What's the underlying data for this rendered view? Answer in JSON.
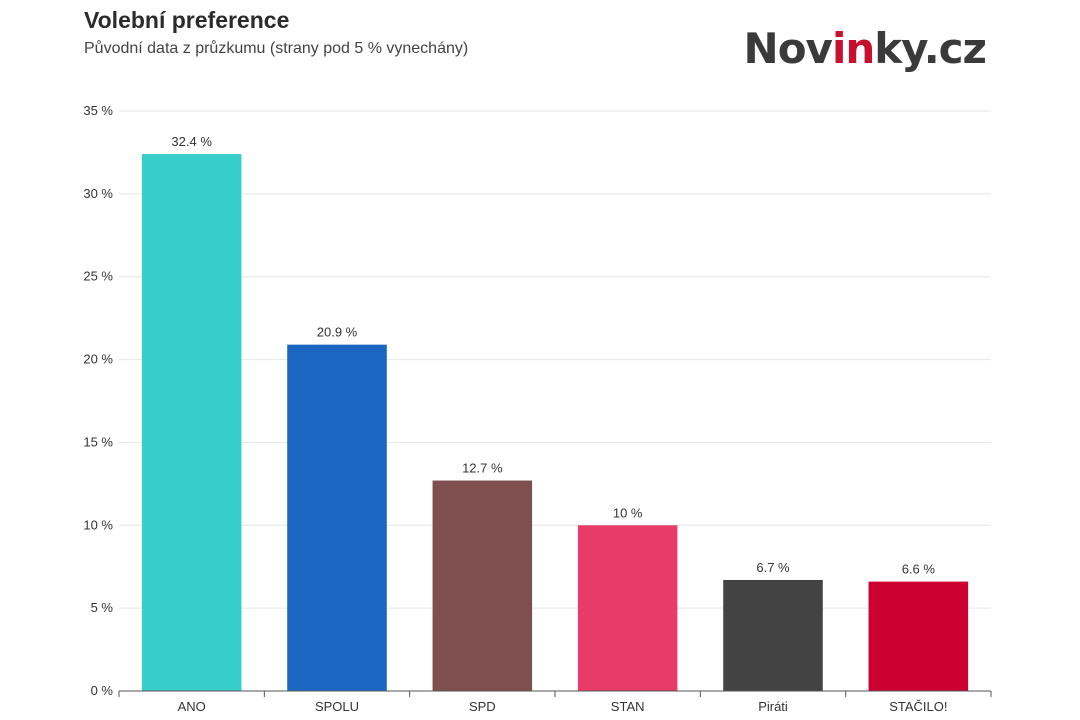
{
  "logo": {
    "part1": "Nov",
    "part2": "in",
    "part3": "ky.cz",
    "colors": {
      "text": "#3a3a3a",
      "accent": "#c8102e"
    }
  },
  "chart_data": {
    "type": "bar",
    "title": "Volební preference",
    "subtitle": "Původní data z průzkumu (strany pod 5 % vynechány)",
    "categories": [
      "ANO",
      "SPOLU",
      "SPD",
      "STAN",
      "Piráti",
      "STAČILO!"
    ],
    "values": [
      32.4,
      20.9,
      12.7,
      10,
      6.7,
      6.6
    ],
    "value_labels": [
      "32.4 %",
      "20.9 %",
      "12.7 %",
      "10 %",
      "6.7 %",
      "6.6 %"
    ],
    "colors": [
      "#36cdcb",
      "#1a66c0",
      "#7f4e4e",
      "#e83b6a",
      "#434343",
      "#cc0033"
    ],
    "ylim": [
      0,
      35
    ],
    "yticks": [
      0,
      5,
      10,
      15,
      20,
      25,
      30,
      35
    ],
    "ytick_labels": [
      "0 %",
      "5 %",
      "10 %",
      "15 %",
      "20 %",
      "25 %",
      "30 %",
      "35 %"
    ],
    "xlabel": "",
    "ylabel": "",
    "grid": true,
    "legend": "none"
  }
}
